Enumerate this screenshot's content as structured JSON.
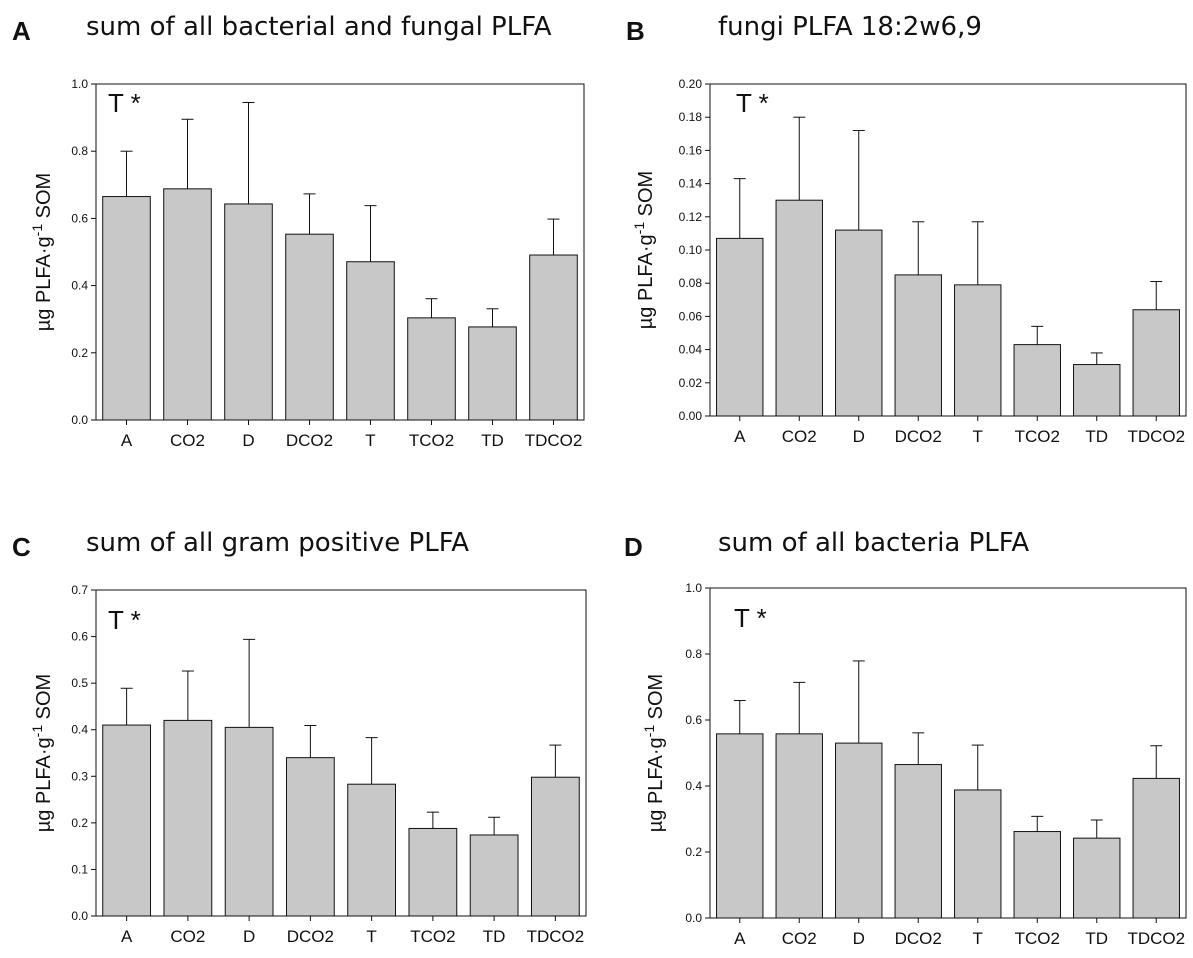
{
  "chart_data": [
    {
      "type": "bar",
      "panel": "A",
      "title": "sum of all bacterial and fungal PLFA",
      "annotation": "T *",
      "ylabel_main": "µg PLFA·g",
      "ylabel_sup": "-1",
      "ylabel_tail": " SOM",
      "categories": [
        "A",
        "CO2",
        "D",
        "DCO2",
        "T",
        "TCO2",
        "TD",
        "TDCO2"
      ],
      "values": [
        0.665,
        0.688,
        0.643,
        0.553,
        0.471,
        0.304,
        0.277,
        0.491
      ],
      "errors": [
        0.135,
        0.207,
        0.302,
        0.12,
        0.167,
        0.057,
        0.054,
        0.107
      ],
      "ylim": [
        0,
        1.0
      ],
      "yticks": [
        "0.0",
        "0.2",
        "0.4",
        "0.6",
        "0.8",
        "1.0"
      ],
      "bar_color": "#c8c8c8",
      "grid": false
    },
    {
      "type": "bar",
      "panel": "B",
      "title": "fungi PLFA 18:2w6,9",
      "annotation": "T *",
      "ylabel_main": "µg PLFA·g",
      "ylabel_sup": "-1",
      "ylabel_tail": " SOM",
      "categories": [
        "A",
        "CO2",
        "D",
        "DCO2",
        "T",
        "TCO2",
        "TD",
        "TDCO2"
      ],
      "values": [
        0.107,
        0.13,
        0.112,
        0.085,
        0.079,
        0.043,
        0.031,
        0.064
      ],
      "errors": [
        0.036,
        0.05,
        0.06,
        0.032,
        0.038,
        0.011,
        0.007,
        0.017
      ],
      "ylim": [
        0,
        0.2
      ],
      "yticks": [
        "0.00",
        "0.02",
        "0.04",
        "0.06",
        "0.08",
        "0.10",
        "0.12",
        "0.14",
        "0.16",
        "0.18",
        "0.20"
      ],
      "bar_color": "#c8c8c8",
      "grid": false
    },
    {
      "type": "bar",
      "panel": "C",
      "title": "sum of all gram positive PLFA",
      "annotation": "T *",
      "ylabel_main": "µg PLFA·g",
      "ylabel_sup": "-1",
      "ylabel_tail": " SOM",
      "categories": [
        "A",
        "CO2",
        "D",
        "DCO2",
        "T",
        "TCO2",
        "TD",
        "TDCO2"
      ],
      "values": [
        0.41,
        0.42,
        0.405,
        0.34,
        0.283,
        0.188,
        0.174,
        0.298
      ],
      "errors": [
        0.079,
        0.106,
        0.189,
        0.069,
        0.1,
        0.035,
        0.038,
        0.069
      ],
      "ylim": [
        0,
        0.7
      ],
      "yticks": [
        "0.0",
        "0.1",
        "0.2",
        "0.3",
        "0.4",
        "0.5",
        "0.6",
        "0.7"
      ],
      "bar_color": "#c8c8c8",
      "grid": false
    },
    {
      "type": "bar",
      "panel": "D",
      "title": "sum of all bacteria PLFA",
      "annotation": "T *",
      "ylabel_main": "µg PLFA·g",
      "ylabel_sup": "-1",
      "ylabel_tail": " SOM",
      "categories": [
        "A",
        "CO2",
        "D",
        "DCO2",
        "T",
        "TCO2",
        "TD",
        "TDCO2"
      ],
      "values": [
        0.558,
        0.558,
        0.53,
        0.465,
        0.388,
        0.262,
        0.242,
        0.423
      ],
      "errors": [
        0.101,
        0.156,
        0.249,
        0.096,
        0.136,
        0.046,
        0.055,
        0.099
      ],
      "ylim": [
        0,
        1.0
      ],
      "yticks": [
        "0.0",
        "0.2",
        "0.4",
        "0.6",
        "0.8",
        "1.0"
      ],
      "bar_color": "#c8c8c8",
      "grid": false
    }
  ]
}
